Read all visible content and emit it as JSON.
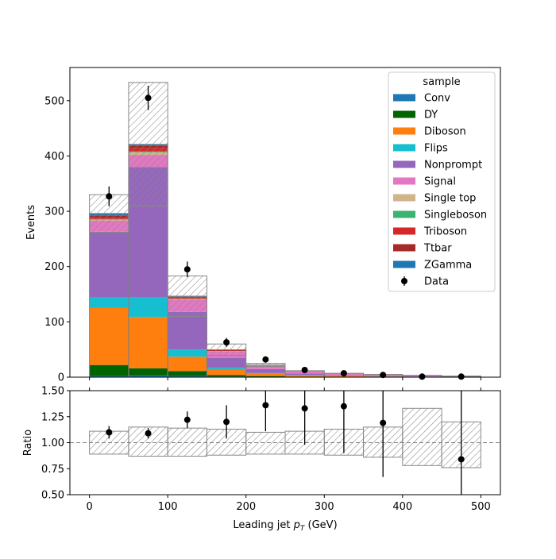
{
  "chart_data": [
    {
      "type": "stacked_histogram",
      "xlabel": "Leading jet  p_T (GeV)",
      "xlabel_parts": {
        "pre": "Leading jet  ",
        "var": "p",
        "sub": "T",
        "post": " (GeV)"
      },
      "ylabel": "Events",
      "xlim": [
        -25,
        525
      ],
      "ylim": [
        0,
        560
      ],
      "xticks": [
        0,
        100,
        200,
        300,
        400,
        500
      ],
      "yticks": [
        0,
        100,
        200,
        300,
        400,
        500
      ],
      "bin_edges": [
        0,
        50,
        100,
        150,
        200,
        250,
        300,
        350,
        400,
        450,
        500
      ],
      "legend": {
        "title": "sample",
        "placement": "top-right"
      },
      "series": [
        {
          "name": "Conv",
          "color": "#1f77b4",
          "values": [
            2,
            3,
            2,
            1,
            0.5,
            0.3,
            0.2,
            0.1,
            0.1,
            0.05
          ]
        },
        {
          "name": "DY",
          "color": "#006400",
          "values": [
            20,
            13,
            9,
            3,
            1.5,
            0.8,
            0.4,
            0.2,
            0.1,
            0.05
          ]
        },
        {
          "name": "Diboson",
          "color": "#ff7f0e",
          "values": [
            103,
            93,
            26,
            9,
            4,
            2,
            1.5,
            1,
            0.6,
            0.3
          ]
        },
        {
          "name": "Flips",
          "color": "#17becf",
          "values": [
            20,
            36,
            13,
            4,
            1.5,
            0.6,
            0.3,
            0.2,
            0.1,
            0.05
          ]
        },
        {
          "name": "Nonprompt",
          "color": "#9467bd",
          "values": [
            118,
            235,
            68,
            18,
            7,
            3,
            1.5,
            1,
            0.6,
            0.3
          ]
        },
        {
          "name": "Signal",
          "color": "#e377c2",
          "values": [
            20,
            22,
            22,
            11,
            6,
            4,
            2.5,
            2,
            1.5,
            0.8
          ]
        },
        {
          "name": "Single top",
          "color": "#d2b48c",
          "values": [
            2,
            5,
            1.5,
            0.8,
            0.3,
            0.2,
            0.1,
            0.1,
            0.05,
            0.05
          ]
        },
        {
          "name": "Singleboson",
          "color": "#3cb371",
          "values": [
            1,
            1,
            0.5,
            0.3,
            0.1,
            0.1,
            0.05,
            0.05,
            0.05,
            0.05
          ]
        },
        {
          "name": "Triboson",
          "color": "#d62728",
          "values": [
            2,
            6,
            2,
            1,
            0.5,
            0.3,
            0.2,
            0.1,
            0.1,
            0.05
          ]
        },
        {
          "name": "Ttbar",
          "color": "#a52a2a",
          "values": [
            4,
            5,
            1.5,
            1,
            0.5,
            0.3,
            0.2,
            0.1,
            0.1,
            0.05
          ]
        },
        {
          "name": "ZGamma",
          "color": "#1f77b4",
          "values": [
            4,
            2,
            1,
            0.5,
            0.2,
            0.1,
            0.05,
            0.05,
            0.05,
            0.05
          ]
        }
      ],
      "uncertainty_band": {
        "style": "hatched",
        "up": [
          330,
          533,
          183,
          60,
          25,
          11.5,
          7,
          5,
          3.2,
          2
        ]
      },
      "data_points": {
        "name": "Data",
        "x": [
          25,
          75,
          125,
          175,
          225,
          275,
          325,
          375,
          425,
          475
        ],
        "y": [
          327,
          505,
          195,
          63,
          32,
          13,
          7,
          4,
          1,
          1
        ],
        "yerr": [
          18,
          22,
          14,
          8,
          5.7,
          3.6,
          2.6,
          2,
          1,
          1
        ]
      }
    },
    {
      "type": "scatter",
      "xlabel": "Leading jet  p_T (GeV)",
      "ylabel": "Ratio",
      "xlim": [
        -25,
        525
      ],
      "ylim": [
        0.5,
        1.5
      ],
      "xticks": [
        0,
        100,
        200,
        300,
        400,
        500
      ],
      "yticks": [
        0.5,
        0.75,
        1.0,
        1.25,
        1.5
      ],
      "ytick_labels": [
        "0.50",
        "0.75",
        "1.00",
        "1.25",
        "1.50"
      ],
      "reference_line": 1.0,
      "bin_edges": [
        0,
        50,
        100,
        150,
        200,
        250,
        300,
        350,
        400,
        450,
        500
      ],
      "band_lo": [
        0.89,
        0.87,
        0.87,
        0.88,
        0.89,
        0.89,
        0.88,
        0.86,
        0.78,
        0.76
      ],
      "band_hi": [
        1.11,
        1.15,
        1.14,
        1.13,
        1.1,
        1.11,
        1.13,
        1.15,
        1.33,
        1.2
      ],
      "x": [
        25,
        75,
        125,
        175,
        225,
        275,
        325,
        375,
        425,
        475
      ],
      "y": [
        1.1,
        1.09,
        1.22,
        1.2,
        1.36,
        1.33,
        1.35,
        1.19,
        null,
        0.84
      ],
      "yerr": [
        0.06,
        0.05,
        0.08,
        0.16,
        0.25,
        0.35,
        0.45,
        0.52,
        null,
        0.9
      ]
    }
  ]
}
